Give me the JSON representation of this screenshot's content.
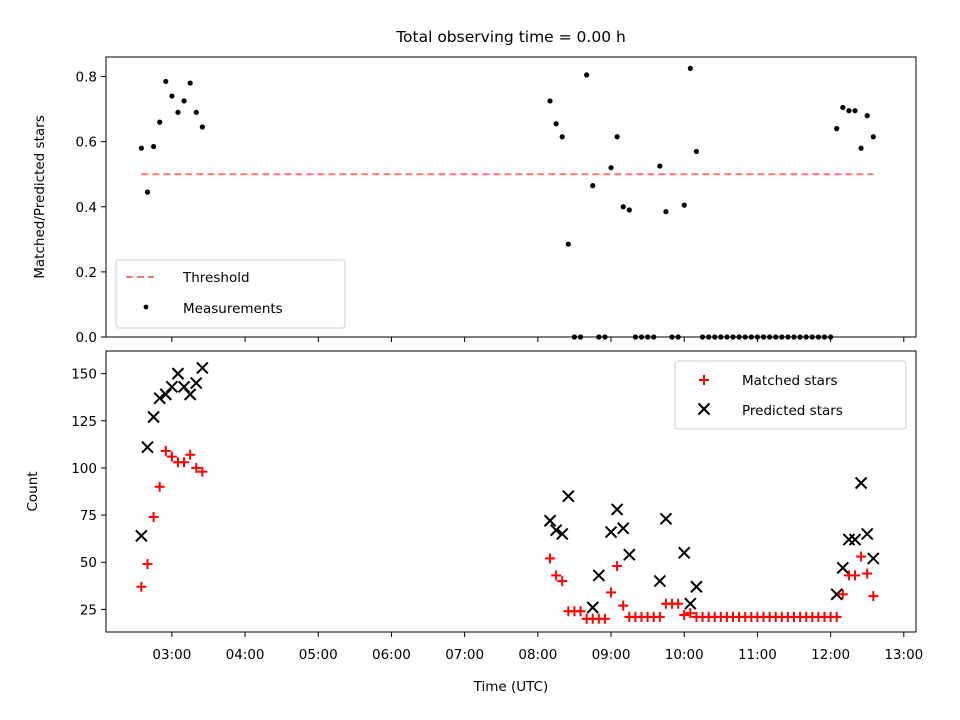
{
  "chart_data": [
    {
      "type": "scatter",
      "title": "Total observing time = 0.00 h",
      "ylabel": "Matched/Predicted stars",
      "ylim": [
        0,
        0.86
      ],
      "yticks": [
        "0.0",
        "0.2",
        "0.4",
        "0.6",
        "0.8"
      ],
      "legend": {
        "placement": "lower-left"
      },
      "threshold": {
        "name": "Threshold",
        "value": 0.5,
        "x_range": [
          "02:35",
          "12:35"
        ],
        "color": "#f47a7a"
      },
      "series": [
        {
          "name": "Measurements",
          "color": "#000000",
          "points": [
            [
              "02:35",
              0.58
            ],
            [
              "02:40",
              0.445
            ],
            [
              "02:45",
              0.585
            ],
            [
              "02:50",
              0.66
            ],
            [
              "02:55",
              0.785
            ],
            [
              "03:00",
              0.74
            ],
            [
              "03:05",
              0.69
            ],
            [
              "03:10",
              0.725
            ],
            [
              "03:15",
              0.78
            ],
            [
              "03:20",
              0.69
            ],
            [
              "03:25",
              0.645
            ],
            [
              "08:10",
              0.725
            ],
            [
              "08:15",
              0.655
            ],
            [
              "08:20",
              0.615
            ],
            [
              "08:25",
              0.285
            ],
            [
              "08:30",
              0.0
            ],
            [
              "08:35",
              0.0
            ],
            [
              "08:40",
              0.805
            ],
            [
              "08:45",
              0.465
            ],
            [
              "08:50",
              0.0
            ],
            [
              "08:55",
              0.0
            ],
            [
              "09:00",
              0.52
            ],
            [
              "09:05",
              0.615
            ],
            [
              "09:10",
              0.4
            ],
            [
              "09:15",
              0.39
            ],
            [
              "09:20",
              0.0
            ],
            [
              "09:25",
              0.0
            ],
            [
              "09:30",
              0.0
            ],
            [
              "09:35",
              0.0
            ],
            [
              "09:40",
              0.525
            ],
            [
              "09:45",
              0.385
            ],
            [
              "09:50",
              0.0
            ],
            [
              "09:55",
              0.0
            ],
            [
              "10:00",
              0.405
            ],
            [
              "10:05",
              0.825
            ],
            [
              "10:10",
              0.57
            ],
            [
              "10:15",
              0.0
            ],
            [
              "10:20",
              0.0
            ],
            [
              "10:25",
              0.0
            ],
            [
              "10:30",
              0.0
            ],
            [
              "10:35",
              0.0
            ],
            [
              "10:40",
              0.0
            ],
            [
              "10:45",
              0.0
            ],
            [
              "10:50",
              0.0
            ],
            [
              "10:55",
              0.0
            ],
            [
              "11:00",
              0.0
            ],
            [
              "11:05",
              0.0
            ],
            [
              "11:10",
              0.0
            ],
            [
              "11:15",
              0.0
            ],
            [
              "11:20",
              0.0
            ],
            [
              "11:25",
              0.0
            ],
            [
              "11:30",
              0.0
            ],
            [
              "11:35",
              0.0
            ],
            [
              "11:40",
              0.0
            ],
            [
              "11:45",
              0.0
            ],
            [
              "11:50",
              0.0
            ],
            [
              "11:55",
              0.0
            ],
            [
              "12:00",
              0.0
            ],
            [
              "12:05",
              0.64
            ],
            [
              "12:10",
              0.705
            ],
            [
              "12:15",
              0.695
            ],
            [
              "12:20",
              0.695
            ],
            [
              "12:25",
              0.58
            ],
            [
              "12:30",
              0.68
            ],
            [
              "12:35",
              0.615
            ]
          ]
        }
      ]
    },
    {
      "type": "scatter",
      "ylabel": "Count",
      "xlabel": "Time (UTC)",
      "ylim": [
        13,
        162
      ],
      "yticks": [
        "25",
        "50",
        "75",
        "100",
        "125",
        "150"
      ],
      "xticks": [
        "03:00",
        "04:00",
        "05:00",
        "06:00",
        "07:00",
        "08:00",
        "09:00",
        "10:00",
        "11:00",
        "12:00",
        "13:00"
      ],
      "legend": {
        "placement": "upper-right"
      },
      "series": [
        {
          "name": "Matched stars",
          "marker": "plus",
          "color": "#ff0000",
          "points": [
            [
              "02:35",
              37
            ],
            [
              "02:40",
              49
            ],
            [
              "02:45",
              74
            ],
            [
              "02:50",
              90
            ],
            [
              "02:55",
              109
            ],
            [
              "03:00",
              106
            ],
            [
              "03:05",
              103
            ],
            [
              "03:10",
              103
            ],
            [
              "03:15",
              107
            ],
            [
              "03:20",
              100
            ],
            [
              "03:25",
              98
            ],
            [
              "08:10",
              52
            ],
            [
              "08:15",
              43
            ],
            [
              "08:20",
              40
            ],
            [
              "08:25",
              24
            ],
            [
              "08:30",
              24
            ],
            [
              "08:35",
              24
            ],
            [
              "08:40",
              20
            ],
            [
              "08:45",
              20
            ],
            [
              "08:50",
              20
            ],
            [
              "08:55",
              20
            ],
            [
              "09:00",
              34
            ],
            [
              "09:05",
              48
            ],
            [
              "09:10",
              27
            ],
            [
              "09:15",
              21
            ],
            [
              "09:20",
              21
            ],
            [
              "09:25",
              21
            ],
            [
              "09:30",
              21
            ],
            [
              "09:35",
              21
            ],
            [
              "09:40",
              21
            ],
            [
              "09:45",
              28
            ],
            [
              "09:50",
              28
            ],
            [
              "09:55",
              28
            ],
            [
              "10:00",
              22
            ],
            [
              "10:05",
              23
            ],
            [
              "10:10",
              21
            ],
            [
              "10:15",
              21
            ],
            [
              "10:20",
              21
            ],
            [
              "10:25",
              21
            ],
            [
              "10:30",
              21
            ],
            [
              "10:35",
              21
            ],
            [
              "10:40",
              21
            ],
            [
              "10:45",
              21
            ],
            [
              "10:50",
              21
            ],
            [
              "10:55",
              21
            ],
            [
              "11:00",
              21
            ],
            [
              "11:05",
              21
            ],
            [
              "11:10",
              21
            ],
            [
              "11:15",
              21
            ],
            [
              "11:20",
              21
            ],
            [
              "11:25",
              21
            ],
            [
              "11:30",
              21
            ],
            [
              "11:35",
              21
            ],
            [
              "11:40",
              21
            ],
            [
              "11:45",
              21
            ],
            [
              "11:50",
              21
            ],
            [
              "11:55",
              21
            ],
            [
              "12:00",
              21
            ],
            [
              "12:05",
              21
            ],
            [
              "12:10",
              33
            ],
            [
              "12:15",
              43
            ],
            [
              "12:20",
              43
            ],
            [
              "12:25",
              53
            ],
            [
              "12:30",
              44
            ],
            [
              "12:35",
              32
            ]
          ]
        },
        {
          "name": "Predicted stars",
          "marker": "x",
          "color": "#000000",
          "points": [
            [
              "02:35",
              64
            ],
            [
              "02:40",
              111
            ],
            [
              "02:45",
              127
            ],
            [
              "02:50",
              137
            ],
            [
              "02:55",
              139
            ],
            [
              "03:00",
              143
            ],
            [
              "03:05",
              150
            ],
            [
              "03:10",
              143
            ],
            [
              "03:15",
              139
            ],
            [
              "03:20",
              145
            ],
            [
              "03:25",
              153
            ],
            [
              "08:10",
              72
            ],
            [
              "08:15",
              67
            ],
            [
              "08:20",
              65
            ],
            [
              "08:25",
              85
            ],
            [
              "08:45",
              26
            ],
            [
              "08:50",
              43
            ],
            [
              "09:00",
              66
            ],
            [
              "09:05",
              78
            ],
            [
              "09:10",
              68
            ],
            [
              "09:15",
              54
            ],
            [
              "09:40",
              40
            ],
            [
              "09:45",
              73
            ],
            [
              "10:00",
              55
            ],
            [
              "10:05",
              28
            ],
            [
              "10:10",
              37
            ],
            [
              "12:05",
              33
            ],
            [
              "12:10",
              47
            ],
            [
              "12:15",
              62
            ],
            [
              "12:20",
              62
            ],
            [
              "12:25",
              92
            ],
            [
              "12:30",
              65
            ],
            [
              "12:35",
              52
            ]
          ]
        }
      ]
    }
  ]
}
